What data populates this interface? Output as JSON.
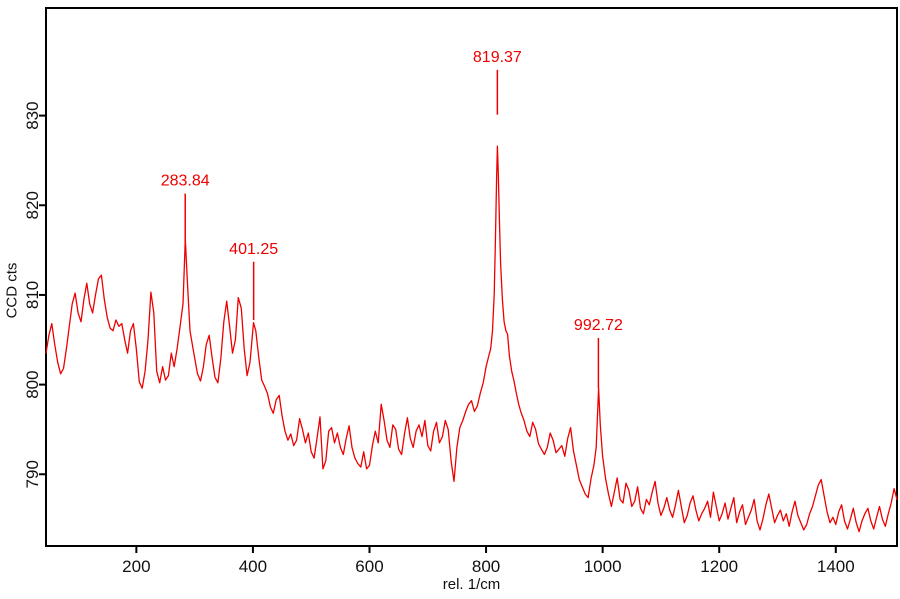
{
  "chart_data": {
    "type": "line",
    "title": "",
    "xlabel": "rel. 1/cm",
    "ylabel": "CCD cts",
    "xlim": [
      45,
      1505
    ],
    "ylim": [
      782,
      842
    ],
    "x_ticks": [
      200,
      400,
      600,
      800,
      1000,
      1200,
      1400
    ],
    "y_ticks": [
      790,
      800,
      810,
      820,
      830
    ],
    "grid": false,
    "legend": "none",
    "line_color": "#ee0000",
    "axis_color": "#000000",
    "tick_label_color": "#111111",
    "peak_label_color": "#ee0000",
    "peak_labels": [
      {
        "label": "283.84",
        "x": 283.84,
        "line_y1": 815.0,
        "line_y2": 821.3
      },
      {
        "label": "401.25",
        "x": 401.25,
        "line_y1": 807.2,
        "line_y2": 813.7
      },
      {
        "label": "819.37",
        "x": 819.37,
        "line_y1": 830.1,
        "line_y2": 835.1
      },
      {
        "label": "992.72",
        "x": 992.72,
        "line_y1": 799.6,
        "line_y2": 805.2
      }
    ],
    "points": [
      [
        45,
        803.5
      ],
      [
        50,
        805.5
      ],
      [
        55,
        806.8
      ],
      [
        60,
        804.5
      ],
      [
        65,
        802.5
      ],
      [
        70,
        801.2
      ],
      [
        75,
        801.8
      ],
      [
        80,
        804.0
      ],
      [
        85,
        806.5
      ],
      [
        90,
        809.0
      ],
      [
        95,
        810.2
      ],
      [
        100,
        808.0
      ],
      [
        105,
        807.0
      ],
      [
        110,
        809.5
      ],
      [
        115,
        811.3
      ],
      [
        120,
        809.0
      ],
      [
        125,
        808.0
      ],
      [
        130,
        810.0
      ],
      [
        135,
        811.8
      ],
      [
        140,
        812.2
      ],
      [
        145,
        809.5
      ],
      [
        150,
        807.5
      ],
      [
        155,
        806.3
      ],
      [
        160,
        806.0
      ],
      [
        165,
        807.2
      ],
      [
        170,
        806.5
      ],
      [
        175,
        806.8
      ],
      [
        180,
        805.0
      ],
      [
        185,
        803.5
      ],
      [
        190,
        806.0
      ],
      [
        195,
        806.8
      ],
      [
        200,
        804.0
      ],
      [
        205,
        800.3
      ],
      [
        210,
        799.6
      ],
      [
        215,
        801.5
      ],
      [
        220,
        805.0
      ],
      [
        225,
        810.3
      ],
      [
        230,
        808.0
      ],
      [
        235,
        801.5
      ],
      [
        240,
        800.2
      ],
      [
        245,
        802.0
      ],
      [
        250,
        800.5
      ],
      [
        255,
        801.0
      ],
      [
        260,
        803.5
      ],
      [
        265,
        802.0
      ],
      [
        270,
        804.0
      ],
      [
        275,
        806.5
      ],
      [
        280,
        809.0
      ],
      [
        284,
        816.2
      ],
      [
        288,
        811.0
      ],
      [
        292,
        806.0
      ],
      [
        296,
        804.5
      ],
      [
        300,
        803.0
      ],
      [
        305,
        801.2
      ],
      [
        310,
        800.4
      ],
      [
        315,
        802.0
      ],
      [
        320,
        804.5
      ],
      [
        325,
        805.5
      ],
      [
        330,
        803.0
      ],
      [
        335,
        800.8
      ],
      [
        340,
        800.2
      ],
      [
        345,
        803.0
      ],
      [
        350,
        807.0
      ],
      [
        355,
        809.3
      ],
      [
        360,
        806.5
      ],
      [
        365,
        803.5
      ],
      [
        370,
        805.0
      ],
      [
        375,
        809.7
      ],
      [
        380,
        808.5
      ],
      [
        385,
        804.0
      ],
      [
        390,
        801.0
      ],
      [
        395,
        802.5
      ],
      [
        401,
        806.9
      ],
      [
        405,
        806.0
      ],
      [
        410,
        803.0
      ],
      [
        415,
        800.5
      ],
      [
        420,
        799.8
      ],
      [
        425,
        799.0
      ],
      [
        430,
        797.5
      ],
      [
        435,
        796.8
      ],
      [
        440,
        798.3
      ],
      [
        445,
        798.8
      ],
      [
        450,
        796.5
      ],
      [
        455,
        794.8
      ],
      [
        460,
        793.8
      ],
      [
        465,
        794.5
      ],
      [
        470,
        793.2
      ],
      [
        475,
        793.8
      ],
      [
        480,
        796.2
      ],
      [
        485,
        795.0
      ],
      [
        490,
        793.5
      ],
      [
        495,
        794.6
      ],
      [
        500,
        792.5
      ],
      [
        505,
        791.8
      ],
      [
        510,
        794.0
      ],
      [
        515,
        796.4
      ],
      [
        520,
        790.6
      ],
      [
        525,
        791.5
      ],
      [
        530,
        794.8
      ],
      [
        535,
        795.2
      ],
      [
        540,
        793.5
      ],
      [
        545,
        794.6
      ],
      [
        550,
        793.0
      ],
      [
        555,
        792.2
      ],
      [
        560,
        794.0
      ],
      [
        565,
        795.4
      ],
      [
        570,
        793.0
      ],
      [
        575,
        791.8
      ],
      [
        580,
        791.2
      ],
      [
        585,
        790.8
      ],
      [
        590,
        792.5
      ],
      [
        595,
        790.6
      ],
      [
        600,
        791.0
      ],
      [
        605,
        793.2
      ],
      [
        610,
        794.8
      ],
      [
        615,
        793.5
      ],
      [
        620,
        797.8
      ],
      [
        625,
        796.0
      ],
      [
        630,
        793.8
      ],
      [
        635,
        793.0
      ],
      [
        640,
        795.5
      ],
      [
        645,
        795.0
      ],
      [
        650,
        792.8
      ],
      [
        655,
        792.2
      ],
      [
        660,
        794.5
      ],
      [
        665,
        796.3
      ],
      [
        670,
        794.0
      ],
      [
        675,
        793.0
      ],
      [
        680,
        794.8
      ],
      [
        685,
        795.5
      ],
      [
        690,
        794.2
      ],
      [
        695,
        796.0
      ],
      [
        700,
        793.2
      ],
      [
        705,
        792.6
      ],
      [
        710,
        794.8
      ],
      [
        715,
        795.8
      ],
      [
        720,
        793.5
      ],
      [
        725,
        794.2
      ],
      [
        730,
        796.0
      ],
      [
        735,
        795.0
      ],
      [
        740,
        791.5
      ],
      [
        745,
        789.2
      ],
      [
        750,
        793.0
      ],
      [
        755,
        795.2
      ],
      [
        760,
        796.0
      ],
      [
        765,
        797.0
      ],
      [
        770,
        797.8
      ],
      [
        775,
        798.2
      ],
      [
        780,
        797.0
      ],
      [
        785,
        797.6
      ],
      [
        790,
        799.0
      ],
      [
        795,
        800.2
      ],
      [
        800,
        802.0
      ],
      [
        805,
        803.3
      ],
      [
        808,
        804.0
      ],
      [
        811,
        806.0
      ],
      [
        814,
        810.0
      ],
      [
        816,
        816.0
      ],
      [
        818,
        823.0
      ],
      [
        819.4,
        826.6
      ],
      [
        821,
        823.5
      ],
      [
        823,
        818.0
      ],
      [
        825,
        813.5
      ],
      [
        828,
        809.5
      ],
      [
        831,
        807.0
      ],
      [
        834,
        806.0
      ],
      [
        837,
        805.6
      ],
      [
        840,
        803.2
      ],
      [
        844,
        801.5
      ],
      [
        848,
        800.4
      ],
      [
        852,
        799.0
      ],
      [
        856,
        797.8
      ],
      [
        860,
        796.9
      ],
      [
        865,
        796.0
      ],
      [
        870,
        794.8
      ],
      [
        875,
        794.2
      ],
      [
        880,
        795.8
      ],
      [
        885,
        795.0
      ],
      [
        890,
        793.4
      ],
      [
        895,
        792.8
      ],
      [
        900,
        792.2
      ],
      [
        905,
        793.0
      ],
      [
        910,
        794.6
      ],
      [
        915,
        793.8
      ],
      [
        920,
        792.4
      ],
      [
        925,
        792.8
      ],
      [
        930,
        793.2
      ],
      [
        935,
        792.0
      ],
      [
        940,
        794.0
      ],
      [
        945,
        795.2
      ],
      [
        950,
        792.6
      ],
      [
        955,
        791.0
      ],
      [
        960,
        789.4
      ],
      [
        965,
        788.6
      ],
      [
        970,
        787.8
      ],
      [
        975,
        787.4
      ],
      [
        980,
        789.5
      ],
      [
        985,
        791.0
      ],
      [
        989,
        793.0
      ],
      [
        993,
        799.6
      ],
      [
        996,
        795.5
      ],
      [
        1000,
        792.0
      ],
      [
        1005,
        789.5
      ],
      [
        1010,
        787.8
      ],
      [
        1015,
        786.4
      ],
      [
        1020,
        788.0
      ],
      [
        1025,
        789.6
      ],
      [
        1030,
        787.2
      ],
      [
        1035,
        786.8
      ],
      [
        1040,
        789.0
      ],
      [
        1045,
        788.2
      ],
      [
        1050,
        786.4
      ],
      [
        1055,
        787.0
      ],
      [
        1060,
        788.6
      ],
      [
        1065,
        786.2
      ],
      [
        1070,
        785.6
      ],
      [
        1075,
        787.2
      ],
      [
        1080,
        786.6
      ],
      [
        1085,
        788.0
      ],
      [
        1090,
        789.2
      ],
      [
        1095,
        786.8
      ],
      [
        1100,
        785.4
      ],
      [
        1105,
        786.2
      ],
      [
        1110,
        787.4
      ],
      [
        1115,
        786.0
      ],
      [
        1120,
        785.2
      ],
      [
        1125,
        786.6
      ],
      [
        1130,
        788.2
      ],
      [
        1135,
        786.4
      ],
      [
        1140,
        784.6
      ],
      [
        1145,
        785.4
      ],
      [
        1150,
        786.8
      ],
      [
        1155,
        787.6
      ],
      [
        1160,
        786.0
      ],
      [
        1165,
        784.8
      ],
      [
        1170,
        785.6
      ],
      [
        1175,
        786.2
      ],
      [
        1180,
        787.0
      ],
      [
        1185,
        785.2
      ],
      [
        1190,
        788.0
      ],
      [
        1195,
        786.4
      ],
      [
        1200,
        784.8
      ],
      [
        1205,
        785.6
      ],
      [
        1210,
        786.8
      ],
      [
        1215,
        785.0
      ],
      [
        1220,
        786.2
      ],
      [
        1225,
        787.4
      ],
      [
        1230,
        784.6
      ],
      [
        1235,
        785.8
      ],
      [
        1240,
        786.6
      ],
      [
        1245,
        784.4
      ],
      [
        1250,
        785.2
      ],
      [
        1255,
        786.0
      ],
      [
        1260,
        787.2
      ],
      [
        1265,
        784.8
      ],
      [
        1270,
        783.8
      ],
      [
        1275,
        785.0
      ],
      [
        1280,
        786.6
      ],
      [
        1285,
        787.8
      ],
      [
        1290,
        786.2
      ],
      [
        1295,
        784.6
      ],
      [
        1300,
        785.4
      ],
      [
        1305,
        786.0
      ],
      [
        1310,
        784.8
      ],
      [
        1315,
        785.6
      ],
      [
        1320,
        784.2
      ],
      [
        1325,
        785.8
      ],
      [
        1330,
        787.0
      ],
      [
        1335,
        785.4
      ],
      [
        1340,
        784.6
      ],
      [
        1345,
        783.8
      ],
      [
        1350,
        784.4
      ],
      [
        1355,
        785.6
      ],
      [
        1360,
        786.4
      ],
      [
        1365,
        787.6
      ],
      [
        1370,
        788.8
      ],
      [
        1375,
        789.4
      ],
      [
        1380,
        787.6
      ],
      [
        1385,
        785.8
      ],
      [
        1390,
        784.6
      ],
      [
        1395,
        785.2
      ],
      [
        1400,
        784.4
      ],
      [
        1405,
        785.8
      ],
      [
        1410,
        786.6
      ],
      [
        1415,
        784.8
      ],
      [
        1420,
        783.9
      ],
      [
        1425,
        785.0
      ],
      [
        1430,
        786.2
      ],
      [
        1435,
        784.6
      ],
      [
        1440,
        783.6
      ],
      [
        1445,
        784.8
      ],
      [
        1450,
        785.6
      ],
      [
        1455,
        786.2
      ],
      [
        1460,
        784.8
      ],
      [
        1465,
        783.9
      ],
      [
        1470,
        785.2
      ],
      [
        1475,
        786.4
      ],
      [
        1480,
        785.0
      ],
      [
        1485,
        784.2
      ],
      [
        1490,
        785.6
      ],
      [
        1495,
        786.8
      ],
      [
        1500,
        788.4
      ],
      [
        1505,
        787.2
      ]
    ]
  }
}
